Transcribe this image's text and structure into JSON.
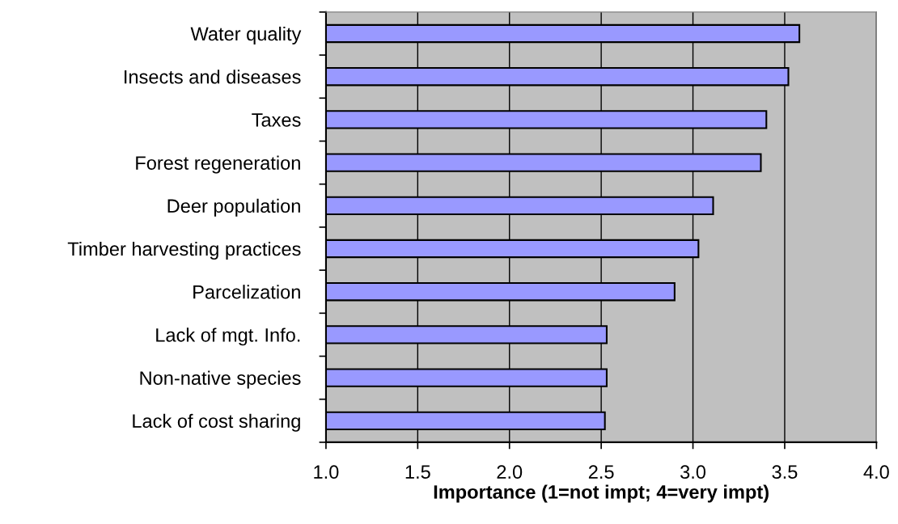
{
  "chart_data": {
    "type": "bar",
    "orientation": "horizontal",
    "xlabel": "Importance (1=not impt; 4=very impt)",
    "categories": [
      "Water quality",
      "Insects and diseases",
      "Taxes",
      "Forest regeneration",
      "Deer population",
      "Timber harvesting practices",
      "Parcelization",
      "Lack of mgt. Info.",
      "Non-native species",
      "Lack of cost sharing"
    ],
    "values": [
      3.58,
      3.52,
      3.4,
      3.37,
      3.11,
      3.03,
      2.9,
      2.53,
      2.53,
      2.52
    ],
    "color": "#9999ff",
    "xlim": [
      1.0,
      4.0
    ],
    "xticks": [
      {
        "value": 1.0,
        "label": "1.0"
      },
      {
        "value": 1.5,
        "label": "1.5"
      },
      {
        "value": 2.0,
        "label": "2.0"
      },
      {
        "value": 2.5,
        "label": "2.5"
      },
      {
        "value": 3.0,
        "label": "3.0"
      },
      {
        "value": 3.5,
        "label": "3.5"
      },
      {
        "value": 4.0,
        "label": "4.0"
      }
    ],
    "grid": "x",
    "legend": false
  }
}
